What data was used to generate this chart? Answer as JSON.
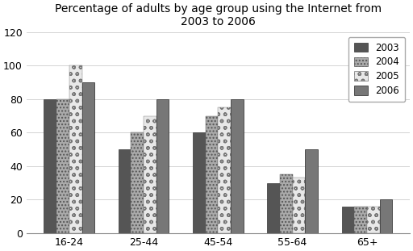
{
  "title": "Percentage of adults by age group using the Internet from\n2003 to 2006",
  "categories": [
    "16-24",
    "25-44",
    "45-54",
    "55-64",
    "65+"
  ],
  "years": [
    "2003",
    "2004",
    "2005",
    "2006"
  ],
  "values": {
    "2003": [
      80,
      50,
      60,
      30,
      16
    ],
    "2004": [
      80,
      60,
      70,
      35,
      16
    ],
    "2005": [
      100,
      70,
      75,
      33,
      16
    ],
    "2006": [
      90,
      80,
      80,
      50,
      20
    ]
  },
  "ylim": [
    0,
    120
  ],
  "yticks": [
    0,
    20,
    40,
    60,
    80,
    100,
    120
  ],
  "background_color": "#ffffff",
  "title_fontsize": 10,
  "bar_width": 0.17
}
